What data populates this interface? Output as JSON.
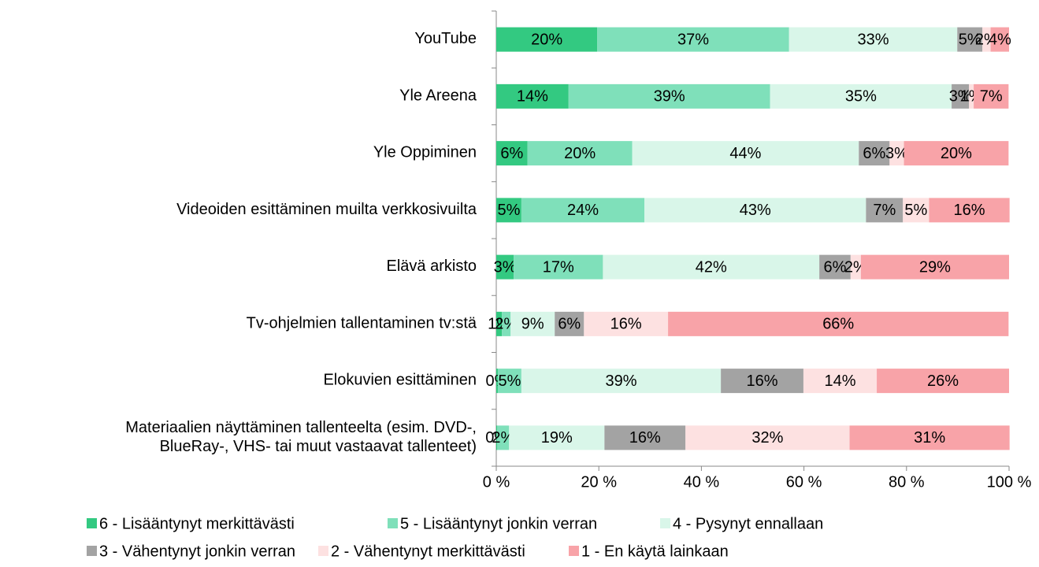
{
  "chart_data": {
    "type": "stacked_bar_horizontal",
    "categories": [
      "YouTube",
      "Yle Areena",
      "Yle Oppiminen",
      "Videoiden esittäminen muilta verkkosivuilta",
      "Elävä arkisto",
      "Tv-ohjelmien tallentaminen tv:stä",
      "Elokuvien esittäminen",
      "Materiaalien näyttäminen tallenteelta (esim. DVD-,\nBlueRay-, VHS- tai muut vastaavat tallenteet)"
    ],
    "series": [
      {
        "name": "6 - Lisääntynyt merkittävästi",
        "color": "#33c981",
        "values": [
          19.7,
          14.1,
          6.1,
          4.9,
          3.4,
          1.1,
          0.3,
          0.2
        ],
        "value_labels": [
          "20%",
          "14%",
          "6%",
          "5%",
          "3%",
          "1%",
          "0%",
          "0%"
        ]
      },
      {
        "name": "5 - Lisääntynyt jonkin verran",
        "color": "#7fe0ba",
        "values": [
          37.4,
          39.3,
          20.4,
          24.0,
          17.4,
          1.7,
          4.6,
          2.3
        ],
        "value_labels": [
          "37%",
          "39%",
          "20%",
          "24%",
          "17%",
          "2%",
          "5%",
          "2%"
        ]
      },
      {
        "name": "4 - Pysynyt ennallaan",
        "color": "#d9f6e9",
        "values": [
          32.8,
          35.4,
          44.2,
          43.2,
          42.2,
          8.6,
          38.9,
          18.6
        ],
        "value_labels": [
          "33%",
          "35%",
          "44%",
          "43%",
          "42%",
          "9%",
          "39%",
          "19%"
        ]
      },
      {
        "name": "3 - Vähentynyt jonkin verran",
        "color": "#a3a3a3",
        "values": [
          4.9,
          3.4,
          6.0,
          7.2,
          6.1,
          5.7,
          16.1,
          15.8
        ],
        "value_labels": [
          "5%",
          "3%",
          "6%",
          "7%",
          "6%",
          "6%",
          "16%",
          "16%"
        ]
      },
      {
        "name": "2 - Vähentynyt merkittävästi",
        "color": "#fde1e1",
        "values": [
          1.6,
          0.9,
          2.8,
          5.1,
          2.0,
          16.4,
          14.3,
          32.0
        ],
        "value_labels": [
          "2%",
          "1%",
          "3%",
          "5%",
          "2%",
          "16%",
          "14%",
          "32%"
        ]
      },
      {
        "name": "1 - En käytä lainkaan",
        "color": "#f8a3a8",
        "values": [
          3.6,
          6.8,
          20.4,
          15.7,
          28.9,
          66.4,
          25.8,
          31.2
        ],
        "value_labels": [
          "4%",
          "7%",
          "20%",
          "16%",
          "29%",
          "66%",
          "26%",
          "31%"
        ]
      }
    ],
    "xlim": [
      0,
      100
    ],
    "xticks": [
      {
        "value": 0,
        "label": "0 %"
      },
      {
        "value": 20,
        "label": "20 %"
      },
      {
        "value": 40,
        "label": "40 %"
      },
      {
        "value": 60,
        "label": "60 %"
      },
      {
        "value": 80,
        "label": "80 %"
      },
      {
        "value": 100,
        "label": "100 %"
      }
    ],
    "legend": "bottom"
  }
}
